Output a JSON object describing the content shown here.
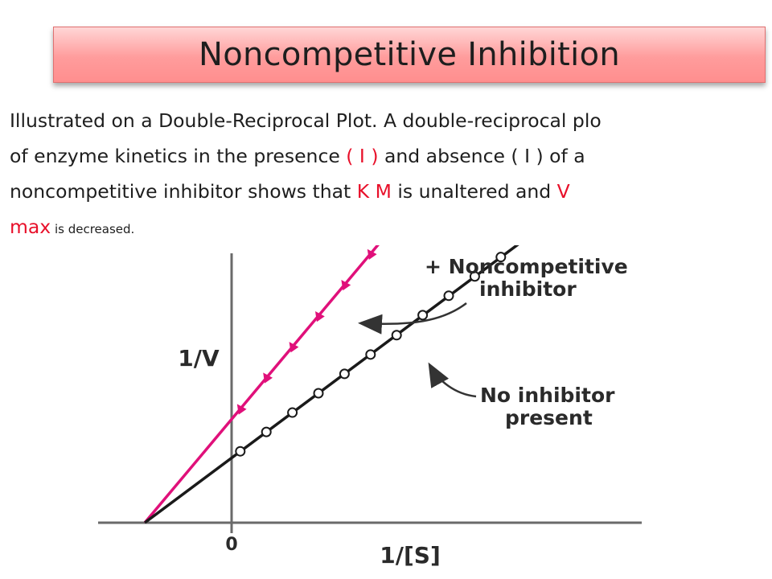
{
  "slide": {
    "title": "Noncompetitive Inhibition",
    "body": {
      "line1": "Illustrated on a Double-Reciprocal Plot. A double-reciprocal plo",
      "line2_a": "of enzyme kinetics in the presence ",
      "line2_b": "( I )",
      "line2_c": " and absence ( I ) of a",
      "line3_a": "noncompetitive inhibitor shows that ",
      "line3_b": "K M",
      "line3_c": " is unaltered and ",
      "line3_d": "V",
      "line4_a": "max",
      "line4_b": " is decreased."
    },
    "colors": {
      "accent_red": "#e8102a",
      "inhibitor_line": "#e0107a",
      "no_inhibitor_line": "#1a1a1a"
    }
  },
  "chart_data": {
    "type": "line",
    "xlabel": "1/[S]",
    "ylabel": "1/V",
    "x_ticks": [
      "0"
    ],
    "xlim": [
      -1.0,
      3.7
    ],
    "ylim": [
      0,
      5.0
    ],
    "series": [
      {
        "name": "+ Noncompetitive inhibitor",
        "marker": "triangle",
        "intercept_x": -1.0,
        "intercept_y": 1.55,
        "x": [
          0.1,
          0.4,
          0.7,
          1.0,
          1.3,
          1.6,
          1.9
        ],
        "y": [
          1.71,
          2.18,
          2.64,
          3.1,
          3.57,
          4.03,
          4.5
        ]
      },
      {
        "name": "No inhibitor present",
        "marker": "circle",
        "intercept_x": -1.0,
        "intercept_y": 0.97,
        "x": [
          0.1,
          0.4,
          0.7,
          1.0,
          1.3,
          1.6,
          1.9,
          2.2,
          2.5,
          2.8,
          3.1,
          3.4
        ],
        "y": [
          1.07,
          1.36,
          1.65,
          1.94,
          2.23,
          2.52,
          2.81,
          3.11,
          3.4,
          3.69,
          3.98,
          4.27
        ]
      }
    ],
    "annotations": [
      {
        "lines": [
          "+ Noncompetitive",
          "inhibitor"
        ]
      },
      {
        "lines": [
          "No inhibitor",
          "present"
        ]
      }
    ]
  }
}
